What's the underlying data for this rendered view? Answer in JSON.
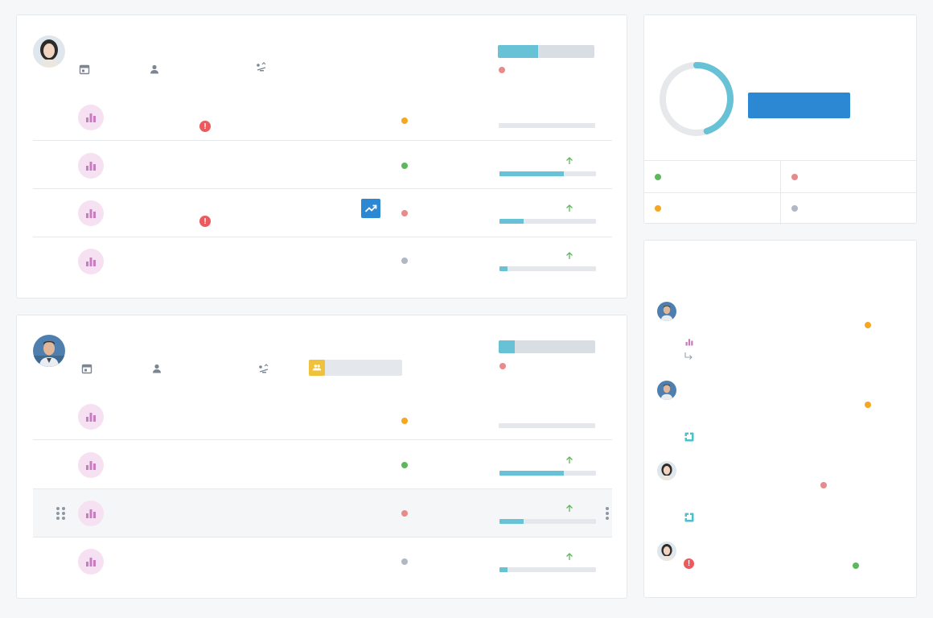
{
  "colors": {
    "accent": "#66c2d4",
    "primary": "#2d88d4",
    "status_orange": "#f5a623",
    "status_green": "#5cb85c",
    "status_red": "#e88a8a",
    "status_gray": "#b0b8c4",
    "alert_red": "#eb5a5e",
    "icon_purple": "#c77dbf",
    "group_yellow": "#f0c23b"
  },
  "project_cards": [
    {
      "owner_avatar": "woman-avatar",
      "meta_icons": [
        "calendar-icon",
        "person-icon",
        "balance-icon"
      ],
      "overall_progress": 0.42,
      "status_dot": "red",
      "tasks": [
        {
          "icon": "bar-chart-icon",
          "alert": true,
          "status": "orange",
          "progress": 0.0,
          "trend_up": false
        },
        {
          "icon": "bar-chart-icon",
          "alert": false,
          "status": "green",
          "progress": 0.67,
          "trend_up": true
        },
        {
          "icon": "bar-chart-icon",
          "alert": true,
          "status": "red",
          "progress": 0.25,
          "trend_up": true,
          "trend_button": true
        },
        {
          "icon": "bar-chart-icon",
          "alert": false,
          "status": "gray",
          "progress": 0.08,
          "trend_up": true
        }
      ]
    },
    {
      "owner_avatar": "man-avatar",
      "meta_icons": [
        "calendar-icon",
        "person-icon",
        "balance-icon",
        "group-icon"
      ],
      "overall_progress": 0.17,
      "status_dot": "red",
      "tasks": [
        {
          "icon": "bar-chart-icon",
          "alert": false,
          "status": "orange",
          "progress": 0.0,
          "trend_up": false
        },
        {
          "icon": "bar-chart-icon",
          "alert": false,
          "status": "green",
          "progress": 0.67,
          "trend_up": true
        },
        {
          "icon": "bar-chart-icon",
          "alert": false,
          "status": "red",
          "progress": 0.25,
          "trend_up": true,
          "hovered": true
        },
        {
          "icon": "bar-chart-icon",
          "alert": false,
          "status": "gray",
          "progress": 0.08,
          "trend_up": true
        }
      ]
    }
  ],
  "summary": {
    "donut_progress": 0.45,
    "stats": [
      {
        "status": "green"
      },
      {
        "status": "red"
      },
      {
        "status": "orange"
      },
      {
        "status": "gray"
      }
    ]
  },
  "activity_feed": [
    {
      "avatar": "man-avatar",
      "status": "orange",
      "icon": "bar-chart-icon",
      "reply": true
    },
    {
      "avatar": "man-avatar",
      "status": "orange",
      "icon": "puzzle-icon",
      "reply": false
    },
    {
      "avatar": "woman-avatar",
      "status": "red",
      "icon": "puzzle-icon",
      "reply": false
    },
    {
      "avatar": "woman-avatar",
      "status": "green",
      "icon": "alert-icon",
      "reply": false
    }
  ]
}
